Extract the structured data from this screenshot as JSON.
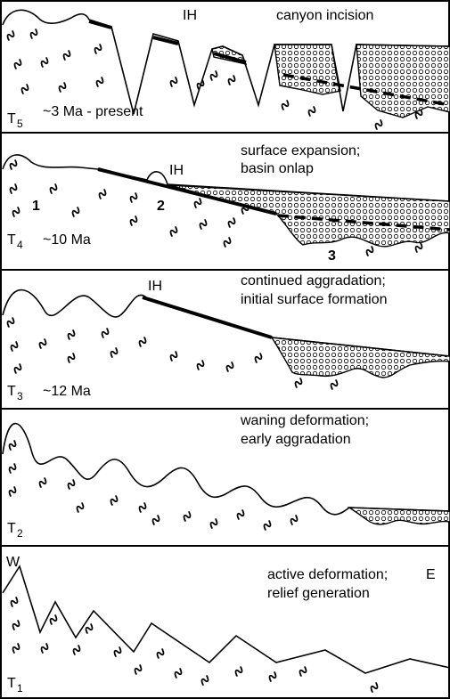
{
  "panels": [
    {
      "label": "T",
      "subscript": "5",
      "age": "~3 Ma - present",
      "caption": [
        "canyon incision"
      ],
      "marker": "IH"
    },
    {
      "label": "T",
      "subscript": "4",
      "age": "~10 Ma",
      "caption": [
        "surface expansion;",
        "basin onlap"
      ],
      "marker": "IH",
      "numbers": [
        "1",
        "2",
        "3"
      ]
    },
    {
      "label": "T",
      "subscript": "3",
      "age": "~12 Ma",
      "caption": [
        "continued aggradation;",
        "initial surface formation"
      ],
      "marker": "IH"
    },
    {
      "label": "T",
      "subscript": "2",
      "caption": [
        "waning deformation;",
        "early aggradation"
      ]
    },
    {
      "label": "T",
      "subscript": "1",
      "caption": [
        "active deformation;",
        "relief generation"
      ],
      "west": "W",
      "east": "E"
    }
  ]
}
